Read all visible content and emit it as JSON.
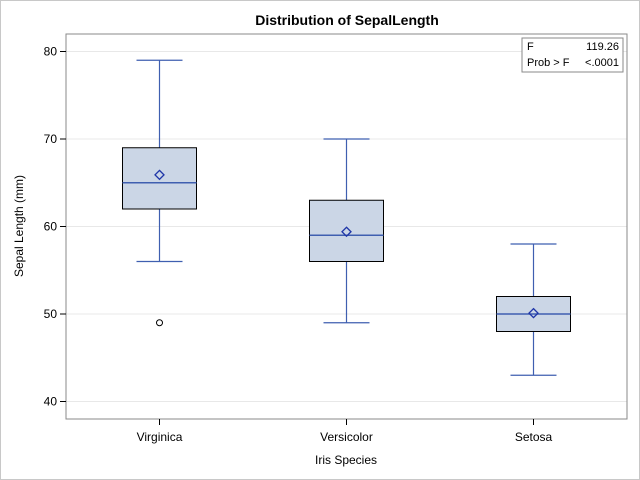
{
  "chart_data": {
    "type": "box",
    "title": "Distribution of SepalLength",
    "xlabel": "Iris Species",
    "ylabel": "Sepal Length (mm)",
    "ylim": [
      38,
      82
    ],
    "yticks": [
      40,
      50,
      60,
      70,
      80
    ],
    "grid": true,
    "categories": [
      "Virginica",
      "Versicolor",
      "Setosa"
    ],
    "boxes": [
      {
        "name": "Virginica",
        "whisker_low": 56,
        "q1": 62,
        "median": 65,
        "q3": 69,
        "whisker_high": 79,
        "mean": 65.9,
        "outliers": [
          49
        ]
      },
      {
        "name": "Versicolor",
        "whisker_low": 49,
        "q1": 56,
        "median": 59,
        "q3": 63,
        "whisker_high": 70,
        "mean": 59.4,
        "outliers": []
      },
      {
        "name": "Setosa",
        "whisker_low": 43,
        "q1": 48,
        "median": 50,
        "q3": 52,
        "whisker_high": 58,
        "mean": 50.1,
        "outliers": []
      }
    ],
    "inset_stats": [
      {
        "label": "F",
        "value": "119.26"
      },
      {
        "label": "Prob > F",
        "value": "<.0001"
      }
    ],
    "colors": {
      "box_fill": "#cbd6e6",
      "whisker": "#3f5fb0",
      "median": "#3f5fb0",
      "mean_marker": "#1f36a8",
      "box_border": "#000000",
      "grid": "#e8e8e8",
      "frame": "#8a8a8a"
    }
  }
}
